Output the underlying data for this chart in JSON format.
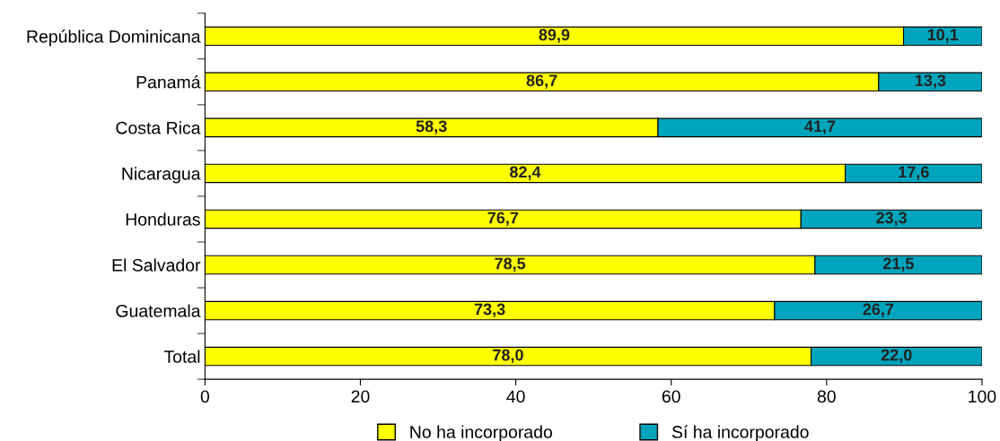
{
  "chart_data": {
    "type": "bar",
    "orientation": "horizontal",
    "stacked": true,
    "categories": [
      "República Dominicana",
      "Panamá",
      "Costa Rica",
      "Nicaragua",
      "Honduras",
      "El Salvador",
      "Guatemala",
      "Total"
    ],
    "series": [
      {
        "name": "No ha incorporado",
        "color": "#ffff00",
        "values": [
          89.9,
          86.7,
          58.3,
          82.4,
          76.7,
          78.5,
          73.3,
          78.0
        ],
        "value_labels": [
          "89,9",
          "86,7",
          "58,3",
          "82,4",
          "76,7",
          "78,5",
          "73,3",
          "78,0"
        ]
      },
      {
        "name": "Sí ha incorporado",
        "color": "#00a5bd",
        "values": [
          10.1,
          13.3,
          41.7,
          17.6,
          23.3,
          21.5,
          26.7,
          22.0
        ],
        "value_labels": [
          "10,1",
          "13,3",
          "41,7",
          "17,6",
          "23,3",
          "21,5",
          "26,7",
          "22,0"
        ]
      }
    ],
    "xlim": [
      0,
      100
    ],
    "xticks": [
      0,
      20,
      40,
      60,
      80,
      100
    ],
    "grid": false,
    "legend": "bottom"
  }
}
